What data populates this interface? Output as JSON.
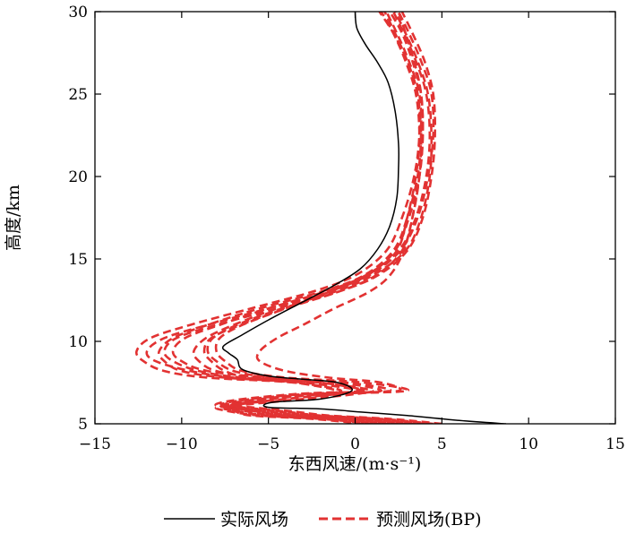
{
  "chart_data": {
    "type": "line",
    "xlabel": "东西风速/(m·s⁻¹)",
    "ylabel": "高度/km",
    "xlim": [
      -15,
      15
    ],
    "ylim": [
      5,
      30
    ],
    "xticks": [
      "−15",
      "−10",
      "−5",
      "0",
      "5",
      "10",
      "15"
    ],
    "yticks": [
      "5",
      "10",
      "15",
      "20",
      "25",
      "30"
    ],
    "grid": false,
    "legend_position": "bottom",
    "series": [
      {
        "name": "实际风场",
        "style": "solid",
        "color": "#000000",
        "x": [
          8.7,
          6.0,
          3.0,
          0.5,
          -2.0,
          -5.0,
          -4.8,
          -2.0,
          -0.2,
          -1.0,
          -3.0,
          -5.0,
          -6.5,
          -6.8,
          -7.3,
          -7.6,
          -6.5,
          -5.0,
          -3.0,
          -1.2,
          0.3,
          1.3,
          2.0,
          2.4,
          2.5,
          2.5,
          2.3,
          1.9,
          1.3,
          0.6,
          0.1,
          0.0
        ],
        "y": [
          5.0,
          5.2,
          5.5,
          5.7,
          5.9,
          6.0,
          6.3,
          6.5,
          7.0,
          7.5,
          7.7,
          7.9,
          8.3,
          8.9,
          9.3,
          9.7,
          10.4,
          11.3,
          12.4,
          13.4,
          14.4,
          15.6,
          17.0,
          18.7,
          20.5,
          22.0,
          24.0,
          25.7,
          26.9,
          28.0,
          29.0,
          30.0
        ]
      },
      {
        "name": "预测风场(BP)",
        "style": "dashed",
        "color": "#e23232",
        "members": [
          {
            "x": [
              5.0,
              2.0,
              -1.5,
              -4.0,
              -6.0,
              -7.5,
              -5.0,
              -2.0,
              0.5,
              -2.0,
              -6.0,
              -7.5,
              -8.3,
              -8.7,
              -8.3,
              -6.6,
              -4.0,
              -1.0,
              1.2,
              2.7,
              3.3,
              3.7,
              3.8,
              3.6,
              3.0,
              2.2,
              1.4
            ],
            "y": [
              5.0,
              5.3,
              5.5,
              5.8,
              6.0,
              6.2,
              6.5,
              6.8,
              7.0,
              7.5,
              7.8,
              8.2,
              8.8,
              9.4,
              10.2,
              11.0,
              12.0,
              13.0,
              14.0,
              15.5,
              17.5,
              20.0,
              22.5,
              25.0,
              27.0,
              28.7,
              30.0
            ]
          },
          {
            "x": [
              4.5,
              1.5,
              -2.0,
              -4.5,
              -6.5,
              -7.0,
              -4.0,
              -1.5,
              1.5,
              -1.0,
              -5.5,
              -8.0,
              -9.0,
              -9.3,
              -8.6,
              -7.0,
              -4.5,
              -1.5,
              0.8,
              2.4,
              3.0,
              3.5,
              3.7,
              3.5,
              2.9,
              2.2,
              1.5
            ],
            "y": [
              5.0,
              5.3,
              5.5,
              5.8,
              6.0,
              6.2,
              6.5,
              6.8,
              7.0,
              7.5,
              7.8,
              8.2,
              8.8,
              9.4,
              10.2,
              11.0,
              12.0,
              13.0,
              14.0,
              15.5,
              17.5,
              20.0,
              22.5,
              25.0,
              27.0,
              28.7,
              30.0
            ]
          },
          {
            "x": [
              4.0,
              1.0,
              -2.5,
              -5.0,
              -7.0,
              -7.7,
              -6.0,
              -3.0,
              0.2,
              -3.0,
              -7.5,
              -10.0,
              -11.0,
              -11.3,
              -10.5,
              -8.5,
              -5.5,
              -2.0,
              0.5,
              2.2,
              3.0,
              3.6,
              3.8,
              3.7,
              3.1,
              2.4,
              1.8
            ],
            "y": [
              5.0,
              5.3,
              5.5,
              5.8,
              6.0,
              6.2,
              6.5,
              6.8,
              7.0,
              7.5,
              7.8,
              8.2,
              8.8,
              9.4,
              10.2,
              11.0,
              12.0,
              13.0,
              14.0,
              15.5,
              17.5,
              20.0,
              22.5,
              25.0,
              27.0,
              28.7,
              30.0
            ]
          },
          {
            "x": [
              3.5,
              0.5,
              -3.0,
              -5.5,
              -7.5,
              -8.0,
              -6.5,
              -3.5,
              -0.8,
              -3.5,
              -8.5,
              -11.0,
              -12.2,
              -12.6,
              -11.8,
              -9.5,
              -6.0,
              -2.5,
              0.0,
              1.8,
              2.7,
              3.4,
              3.7,
              3.6,
              3.0,
              2.3,
              1.7
            ],
            "y": [
              5.0,
              5.3,
              5.5,
              5.8,
              6.0,
              6.2,
              6.5,
              6.8,
              7.0,
              7.5,
              7.8,
              8.2,
              8.8,
              9.4,
              10.2,
              11.0,
              12.0,
              13.0,
              14.0,
              15.5,
              17.5,
              20.0,
              22.5,
              25.0,
              27.0,
              28.7,
              30.0
            ]
          },
          {
            "x": [
              3.0,
              0.0,
              -3.5,
              -6.0,
              -7.0,
              -6.5,
              -5.0,
              -2.0,
              3.0,
              0.5,
              -4.0,
              -6.5,
              -7.5,
              -8.0,
              -7.8,
              -6.5,
              -4.0,
              -1.5,
              0.7,
              2.3,
              3.1,
              3.7,
              3.9,
              3.8,
              3.3,
              2.7,
              2.0
            ],
            "y": [
              5.0,
              5.3,
              5.5,
              5.8,
              6.0,
              6.2,
              6.5,
              6.8,
              7.0,
              7.5,
              7.8,
              8.2,
              8.8,
              9.4,
              10.2,
              11.0,
              12.0,
              13.0,
              14.0,
              15.5,
              17.5,
              20.0,
              22.5,
              25.0,
              27.0,
              28.7,
              30.0
            ]
          },
          {
            "x": [
              2.5,
              -0.5,
              -4.0,
              -6.0,
              -7.5,
              -7.3,
              -5.5,
              -2.5,
              2.0,
              -0.5,
              -5.0,
              -8.5,
              -10.0,
              -10.5,
              -9.8,
              -7.8,
              -5.0,
              -1.8,
              0.6,
              2.5,
              3.5,
              4.1,
              4.3,
              4.1,
              3.5,
              2.8,
              2.2
            ],
            "y": [
              5.0,
              5.3,
              5.5,
              5.8,
              6.0,
              6.2,
              6.5,
              6.8,
              7.0,
              7.5,
              7.8,
              8.2,
              8.8,
              9.4,
              10.2,
              11.0,
              12.0,
              13.0,
              14.0,
              15.5,
              17.5,
              20.0,
              22.5,
              25.0,
              27.0,
              28.7,
              30.0
            ]
          },
          {
            "x": [
              2.0,
              -1.0,
              -4.5,
              -6.5,
              -7.3,
              -6.5,
              -4.0,
              -1.0,
              1.0,
              -2.0,
              -6.5,
              -9.0,
              -10.5,
              -11.0,
              -10.3,
              -8.0,
              -4.5,
              -1.2,
              1.0,
              2.9,
              3.8,
              4.3,
              4.4,
              4.2,
              3.6,
              2.9,
              2.3
            ],
            "y": [
              5.0,
              5.3,
              5.5,
              5.8,
              6.0,
              6.2,
              6.5,
              6.8,
              7.0,
              7.5,
              7.8,
              8.2,
              8.8,
              9.4,
              10.2,
              11.0,
              12.0,
              13.0,
              14.0,
              15.5,
              17.5,
              20.0,
              22.5,
              25.0,
              27.0,
              28.7,
              30.0
            ]
          },
          {
            "x": [
              1.5,
              -1.5,
              -5.0,
              -7.0,
              -7.8,
              -7.0,
              -5.0,
              -2.0,
              -1.0,
              -3.5,
              -7.0,
              -9.5,
              -11.5,
              -12.0,
              -11.0,
              -8.5,
              -5.0,
              -1.5,
              0.8,
              2.6,
              3.6,
              4.2,
              4.5,
              4.4,
              3.8,
              3.1,
              2.5
            ],
            "y": [
              5.0,
              5.3,
              5.5,
              5.8,
              6.0,
              6.2,
              6.5,
              6.8,
              7.0,
              7.5,
              7.8,
              8.2,
              8.8,
              9.4,
              10.2,
              11.0,
              12.0,
              13.0,
              14.0,
              15.5,
              17.5,
              20.0,
              22.5,
              25.0,
              27.0,
              28.7,
              30.0
            ]
          },
          {
            "x": [
              1.0,
              -2.0,
              -5.5,
              -7.5,
              -8.0,
              -6.8,
              -3.0,
              0.0,
              0.5,
              -2.5,
              -5.0,
              -7.0,
              -8.0,
              -8.5,
              -8.2,
              -6.8,
              -4.2,
              -1.0,
              1.3,
              3.0,
              3.9,
              4.4,
              4.6,
              4.5,
              4.0,
              3.3,
              2.7
            ],
            "y": [
              5.0,
              5.3,
              5.5,
              5.8,
              6.0,
              6.2,
              6.5,
              6.8,
              7.0,
              7.5,
              7.8,
              8.2,
              8.8,
              9.4,
              10.2,
              11.0,
              12.0,
              13.0,
              14.0,
              15.5,
              17.5,
              20.0,
              22.5,
              25.0,
              27.0,
              28.7,
              30.0
            ]
          },
          {
            "x": [
              0.5,
              -2.5,
              -6.0,
              -7.0,
              -7.5,
              -6.0,
              -3.0,
              -1.0,
              2.5,
              1.5,
              -1.5,
              -4.0,
              -5.5,
              -5.5,
              -4.5,
              -3.0,
              -1.2,
              0.8,
              2.0,
              2.8,
              3.3,
              3.7,
              3.9,
              3.8,
              3.4,
              2.9,
              2.5
            ],
            "y": [
              5.0,
              5.3,
              5.5,
              5.8,
              6.0,
              6.2,
              6.5,
              6.8,
              7.0,
              7.5,
              7.8,
              8.2,
              8.8,
              9.4,
              10.2,
              11.0,
              12.0,
              13.0,
              14.0,
              15.5,
              17.5,
              20.0,
              22.5,
              25.0,
              27.0,
              28.7,
              30.0
            ]
          }
        ]
      }
    ]
  }
}
